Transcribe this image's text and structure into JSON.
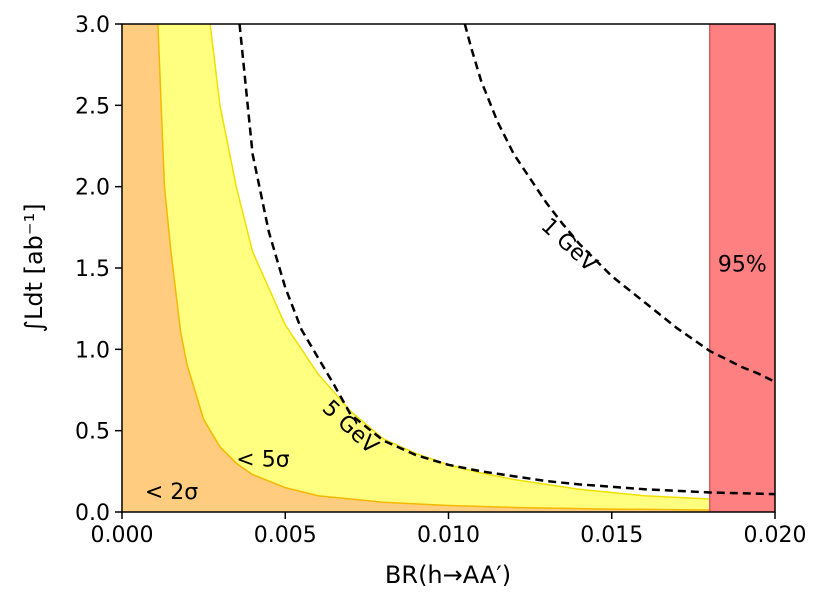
{
  "chart_data": {
    "type": "area",
    "xlabel": "BR(h→AA′)",
    "ylabel": "∫Ldt [ab⁻¹]",
    "xlim": [
      0.0,
      0.02
    ],
    "ylim": [
      0.0,
      3.0
    ],
    "x_ticks": [
      "0.000",
      "0.005",
      "0.010",
      "0.015",
      "0.020"
    ],
    "x_tick_values": [
      0.0,
      0.005,
      0.01,
      0.015,
      0.02
    ],
    "y_ticks": [
      "0.0",
      "0.5",
      "1.0",
      "1.5",
      "2.0",
      "2.5",
      "3.0"
    ],
    "y_tick_values": [
      0.0,
      0.5,
      1.0,
      1.5,
      2.0,
      2.5,
      3.0
    ],
    "grid": false,
    "bands": [
      {
        "label": "< 5σ",
        "color": "#ffff80",
        "edge_color": "#f0e000",
        "boundary": [
          [
            0.0027,
            3.0
          ],
          [
            0.003,
            2.5
          ],
          [
            0.0035,
            2.0
          ],
          [
            0.004,
            1.6
          ],
          [
            0.005,
            1.15
          ],
          [
            0.006,
            0.85
          ],
          [
            0.007,
            0.62
          ],
          [
            0.008,
            0.45
          ],
          [
            0.009,
            0.36
          ],
          [
            0.01,
            0.29
          ],
          [
            0.011,
            0.24
          ],
          [
            0.012,
            0.2
          ],
          [
            0.013,
            0.17
          ],
          [
            0.014,
            0.14
          ],
          [
            0.015,
            0.12
          ],
          [
            0.016,
            0.1
          ],
          [
            0.017,
            0.09
          ],
          [
            0.018,
            0.08
          ]
        ]
      },
      {
        "label": "< 2σ",
        "color": "#ffcc80",
        "edge_color": "#f5b800",
        "boundary": [
          [
            0.0011,
            3.0
          ],
          [
            0.0012,
            2.5
          ],
          [
            0.0013,
            2.0
          ],
          [
            0.0015,
            1.6
          ],
          [
            0.0018,
            1.1
          ],
          [
            0.002,
            0.9
          ],
          [
            0.0025,
            0.57
          ],
          [
            0.003,
            0.4
          ],
          [
            0.0035,
            0.3
          ],
          [
            0.004,
            0.23
          ],
          [
            0.005,
            0.15
          ],
          [
            0.006,
            0.1
          ],
          [
            0.008,
            0.06
          ],
          [
            0.01,
            0.04
          ],
          [
            0.012,
            0.028
          ],
          [
            0.015,
            0.018
          ],
          [
            0.018,
            0.012
          ],
          [
            0.02,
            0.009
          ]
        ]
      }
    ],
    "excluded_region": {
      "label": "95%",
      "x_range": [
        0.018,
        0.02
      ],
      "color": "#ff8080"
    },
    "series": [
      {
        "name": "5 GeV",
        "style": "dashed",
        "x": [
          0.0036,
          0.0038,
          0.004,
          0.0045,
          0.005,
          0.0055,
          0.006,
          0.0065,
          0.007,
          0.008,
          0.009,
          0.01,
          0.011,
          0.012,
          0.013,
          0.014,
          0.015,
          0.016,
          0.017,
          0.018,
          0.019,
          0.02
        ],
        "y": [
          3.0,
          2.6,
          2.2,
          1.72,
          1.38,
          1.12,
          0.95,
          0.78,
          0.6,
          0.44,
          0.35,
          0.29,
          0.25,
          0.22,
          0.19,
          0.17,
          0.155,
          0.14,
          0.13,
          0.12,
          0.115,
          0.11
        ]
      },
      {
        "name": "1 GeV",
        "style": "dashed",
        "x": [
          0.0105,
          0.0107,
          0.011,
          0.0115,
          0.012,
          0.0125,
          0.013,
          0.0135,
          0.014,
          0.0145,
          0.015,
          0.0155,
          0.016,
          0.0165,
          0.017,
          0.0175,
          0.018,
          0.0185,
          0.019,
          0.0195,
          0.02
        ],
        "y": [
          3.0,
          2.85,
          2.65,
          2.4,
          2.2,
          2.05,
          1.9,
          1.77,
          1.65,
          1.55,
          1.45,
          1.37,
          1.29,
          1.21,
          1.13,
          1.06,
          0.99,
          0.94,
          0.89,
          0.85,
          0.8
        ]
      }
    ],
    "annotations": [
      {
        "text": "< 2σ",
        "x": 0.0007,
        "y": 0.08
      },
      {
        "text": "< 5σ",
        "x": 0.0035,
        "y": 0.28
      },
      {
        "text": "5 GeV",
        "x": 0.0061,
        "y": 0.63,
        "rotate": 43
      },
      {
        "text": "1 GeV",
        "x": 0.0128,
        "y": 1.75,
        "rotate": 43
      },
      {
        "text": "95%",
        "x": 0.019,
        "y": 1.48
      }
    ]
  }
}
